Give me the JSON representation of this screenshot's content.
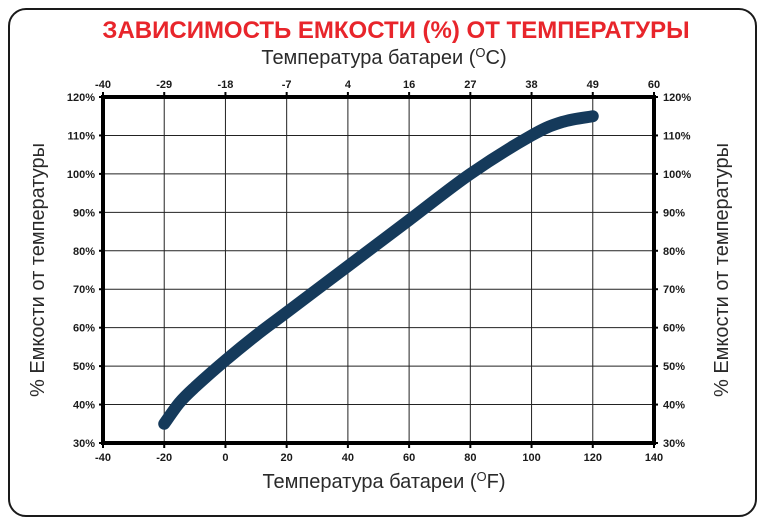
{
  "chart_data": {
    "type": "line",
    "title": "ЗАВИСИМОСТЬ ЕМКОСТИ (%) ОТ ТЕМПЕРАТУРЫ",
    "xlabel": "Температура батареи (",
    "xlabel_unit": "F)",
    "x2label": "Температура батареи (",
    "x2label_unit": "C)",
    "unit_superscript": "O",
    "ylabel": "% Емкости от температуры",
    "y2label": "% Емкости от температуры",
    "xlim": [
      -40,
      140
    ],
    "ylim": [
      30,
      120
    ],
    "x_ticks": [
      "-40",
      "-20",
      "0",
      "20",
      "40",
      "60",
      "80",
      "100",
      "120",
      "140"
    ],
    "x2_ticks": [
      "-40",
      "-29",
      "-18",
      "-7",
      "4",
      "16",
      "27",
      "38",
      "49",
      "60"
    ],
    "y_ticks": [
      "30%",
      "40%",
      "50%",
      "60%",
      "70%",
      "80%",
      "90%",
      "100%",
      "110%",
      "120%"
    ],
    "grid": true,
    "line_color": "#153a5b",
    "series": [
      {
        "x": [
          -20,
          -15,
          -10,
          0,
          10,
          20,
          40,
          60,
          80,
          100,
          110,
          120
        ],
        "y": [
          35,
          40.5,
          44.5,
          51.5,
          58,
          64,
          76,
          88,
          100,
          110,
          113.5,
          115
        ]
      }
    ]
  }
}
